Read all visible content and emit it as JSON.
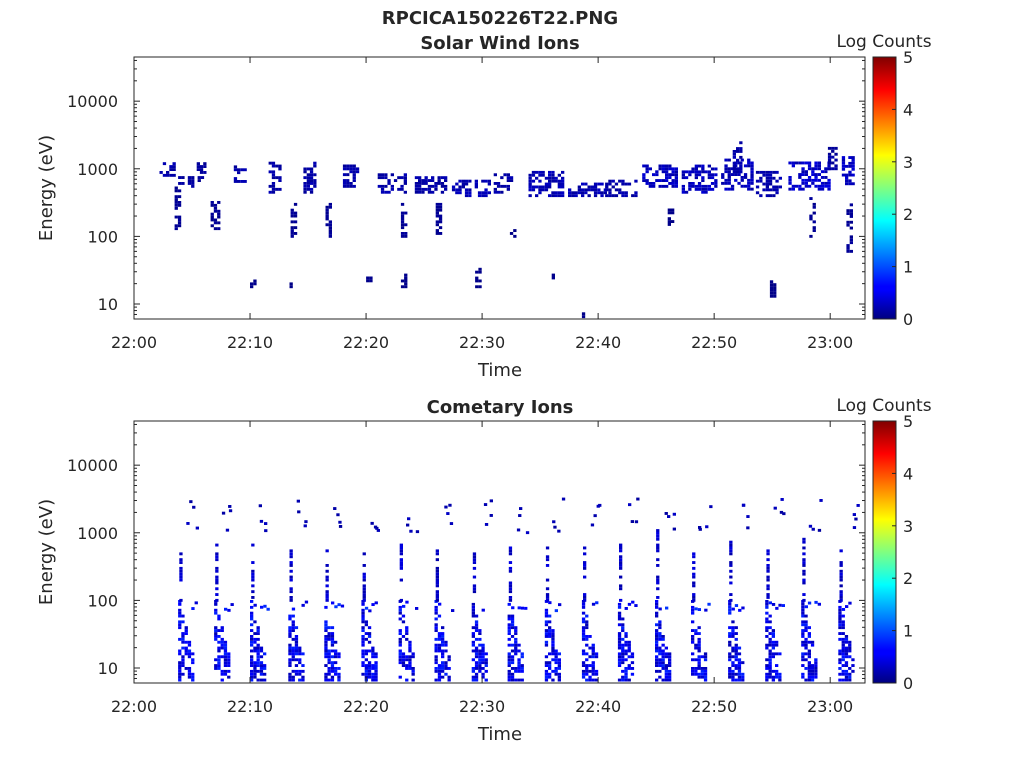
{
  "figure_title": "RPCICA150226T22.PNG",
  "chart_data": [
    {
      "type": "heatmap",
      "title": "Solar Wind Ions",
      "xlabel": "Time",
      "ylabel": "Energy (eV)",
      "x_ticks": [
        "22:00",
        "22:10",
        "22:20",
        "22:30",
        "22:40",
        "22:50",
        "23:00"
      ],
      "x_range_minutes": [
        0,
        63
      ],
      "y_scale": "log",
      "y_ticks": [
        10,
        100,
        1000,
        10000
      ],
      "y_tick_labels": [
        "10",
        "100",
        "1000",
        "10000"
      ],
      "y_range": [
        6,
        45000
      ],
      "colorbar": {
        "label": "Log Counts",
        "ticks": [
          0,
          1,
          2,
          3,
          4,
          5
        ],
        "range": [
          0,
          5
        ],
        "colormap": "jet"
      },
      "grid": false,
      "description_of_data": "sparse pixels mostly near 300-1500 eV, log counts mostly 0-0.5",
      "patches": [
        {
          "t0": 2.2,
          "t1": 3.4,
          "e0": 800,
          "e1": 1250,
          "v": 0.2
        },
        {
          "t0": 3.5,
          "t1": 3.9,
          "e0": 130,
          "e1": 550,
          "v": 0.1
        },
        {
          "t0": 3.8,
          "t1": 5.8,
          "e0": 550,
          "e1": 750,
          "v": 0.15
        },
        {
          "t0": 5.4,
          "t1": 6.2,
          "e0": 800,
          "e1": 1300,
          "v": 0.15
        },
        {
          "t0": 6.6,
          "t1": 7.2,
          "e0": 130,
          "e1": 320,
          "v": 0.1
        },
        {
          "t0": 8.6,
          "t1": 9.6,
          "e0": 650,
          "e1": 1100,
          "v": 0.2
        },
        {
          "t0": 10.0,
          "t1": 10.4,
          "e0": 18,
          "e1": 24,
          "v": 0.05
        },
        {
          "t0": 11.6,
          "t1": 12.6,
          "e0": 450,
          "e1": 1300,
          "v": 0.2
        },
        {
          "t0": 13.4,
          "t1": 13.8,
          "e0": 18,
          "e1": 30,
          "v": 0.05
        },
        {
          "t0": 13.5,
          "t1": 13.9,
          "e0": 100,
          "e1": 300,
          "v": 0.1
        },
        {
          "t0": 14.6,
          "t1": 15.6,
          "e0": 450,
          "e1": 1300,
          "v": 0.2
        },
        {
          "t0": 16.5,
          "t1": 16.9,
          "e0": 100,
          "e1": 320,
          "v": 0.1
        },
        {
          "t0": 18.0,
          "t1": 19.4,
          "e0": 550,
          "e1": 1200,
          "v": 0.2
        },
        {
          "t0": 20.0,
          "t1": 20.4,
          "e0": 22,
          "e1": 28,
          "v": 0.05
        },
        {
          "t0": 21.0,
          "t1": 23.5,
          "e0": 450,
          "e1": 900,
          "v": 0.2
        },
        {
          "t0": 23.0,
          "t1": 23.4,
          "e0": 18,
          "e1": 30,
          "v": 0.05
        },
        {
          "t0": 23.0,
          "t1": 23.4,
          "e0": 100,
          "e1": 300,
          "v": 0.1
        },
        {
          "t0": 24.2,
          "t1": 26.8,
          "e0": 450,
          "e1": 800,
          "v": 0.2
        },
        {
          "t0": 26.0,
          "t1": 26.5,
          "e0": 100,
          "e1": 300,
          "v": 0.1
        },
        {
          "t0": 27.4,
          "t1": 30.6,
          "e0": 400,
          "e1": 700,
          "v": 0.25
        },
        {
          "t0": 29.4,
          "t1": 29.9,
          "e0": 18,
          "e1": 35,
          "v": 0.05
        },
        {
          "t0": 31.0,
          "t1": 32.6,
          "e0": 450,
          "e1": 900,
          "v": 0.2
        },
        {
          "t0": 32.4,
          "t1": 32.8,
          "e0": 100,
          "e1": 130,
          "v": 0.05
        },
        {
          "t0": 34.0,
          "t1": 37.0,
          "e0": 400,
          "e1": 900,
          "v": 0.25
        },
        {
          "t0": 36.0,
          "t1": 36.4,
          "e0": 22,
          "e1": 28,
          "v": 0.05
        },
        {
          "t0": 37.4,
          "t1": 40.6,
          "e0": 400,
          "e1": 600,
          "v": 0.25
        },
        {
          "t0": 38.6,
          "t1": 39.0,
          "e0": 6.5,
          "e1": 9.5,
          "v": 0.05
        },
        {
          "t0": 40.6,
          "t1": 43.2,
          "e0": 400,
          "e1": 700,
          "v": 0.2
        },
        {
          "t0": 43.8,
          "t1": 46.8,
          "e0": 550,
          "e1": 1200,
          "v": 0.3
        },
        {
          "t0": 46.0,
          "t1": 46.4,
          "e0": 150,
          "e1": 250,
          "v": 0.05
        },
        {
          "t0": 47.2,
          "t1": 50.2,
          "e0": 450,
          "e1": 1100,
          "v": 0.3
        },
        {
          "t0": 50.6,
          "t1": 53.4,
          "e0": 500,
          "e1": 1400,
          "v": 0.3
        },
        {
          "t0": 51.6,
          "t1": 52.2,
          "e0": 900,
          "e1": 2500,
          "v": 0.2
        },
        {
          "t0": 53.6,
          "t1": 55.6,
          "e0": 400,
          "e1": 900,
          "v": 0.2
        },
        {
          "t0": 54.8,
          "t1": 55.2,
          "e0": 13,
          "e1": 22,
          "v": 0.05
        },
        {
          "t0": 56.4,
          "t1": 60.0,
          "e0": 500,
          "e1": 1300,
          "v": 0.35
        },
        {
          "t0": 58.2,
          "t1": 58.6,
          "e0": 100,
          "e1": 400,
          "v": 0.1
        },
        {
          "t0": 59.8,
          "t1": 60.4,
          "e0": 1000,
          "e1": 2500,
          "v": 0.15
        },
        {
          "t0": 61.0,
          "t1": 62.0,
          "e0": 600,
          "e1": 1500,
          "v": 0.3
        },
        {
          "t0": 61.4,
          "t1": 61.8,
          "e0": 60,
          "e1": 300,
          "v": 0.1
        }
      ]
    },
    {
      "type": "heatmap",
      "title": "Cometary Ions",
      "xlabel": "Time",
      "ylabel": "Energy (eV)",
      "x_ticks": [
        "22:00",
        "22:10",
        "22:20",
        "22:30",
        "22:40",
        "22:50",
        "23:00"
      ],
      "x_range_minutes": [
        0,
        63
      ],
      "y_scale": "log",
      "y_ticks": [
        10,
        100,
        1000,
        10000
      ],
      "y_tick_labels": [
        "10",
        "100",
        "1000",
        "10000"
      ],
      "y_range": [
        6,
        45000
      ],
      "colorbar": {
        "label": "Log Counts",
        "ticks": [
          0,
          1,
          2,
          3,
          4,
          5
        ],
        "range": [
          0,
          5
        ],
        "colormap": "jet"
      },
      "grid": false,
      "description_of_data": "periodic ion bursts roughly every 3.2 minutes from ~6 eV to ~100 eV, with sparse features up to ~3000 eV",
      "bursts_start_minutes": [
        3.8,
        6.9,
        10.0,
        13.3,
        16.4,
        19.6,
        22.8,
        25.9,
        29.1,
        32.2,
        35.4,
        38.6,
        41.7,
        44.9,
        48.0,
        51.2,
        54.4,
        57.5,
        60.7
      ]
    }
  ]
}
